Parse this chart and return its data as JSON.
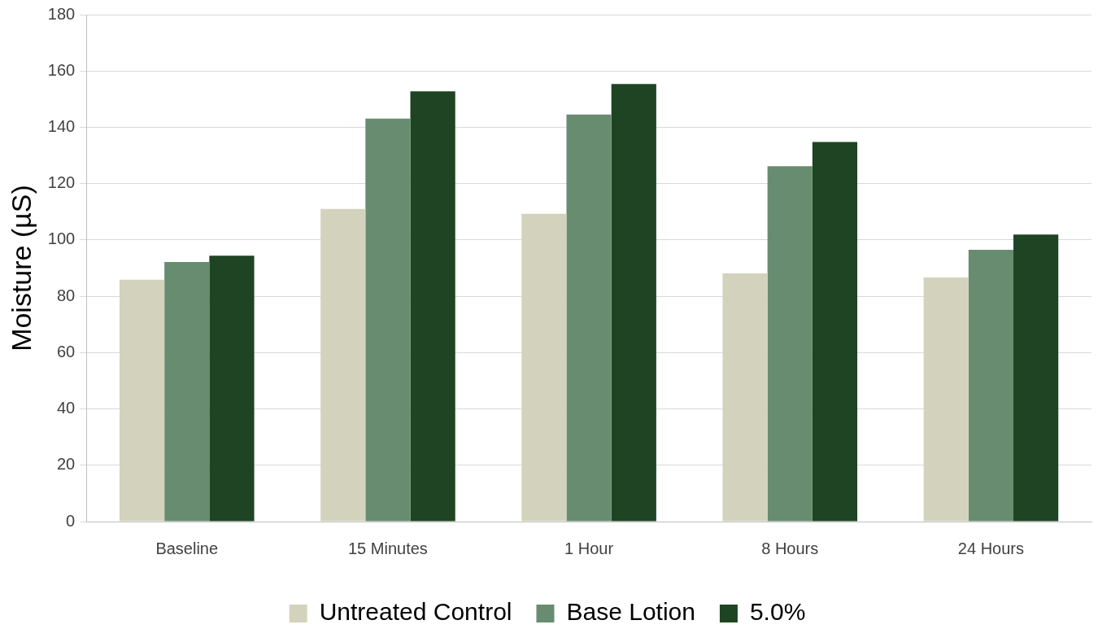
{
  "chart_data": {
    "type": "bar",
    "ylabel": "Moisture (µS)",
    "categories": [
      "Baseline",
      "15 Minutes",
      "1 Hour",
      "8 Hours",
      "24 Hours"
    ],
    "series": [
      {
        "name": "Untreated Control",
        "color": "#d3d3bd",
        "values": [
          85.9,
          111,
          109.3,
          88.1,
          86.7
        ]
      },
      {
        "name": "Base Lotion",
        "color": "#688c70",
        "values": [
          92.2,
          143.1,
          144.5,
          126.2,
          96.5
        ]
      },
      {
        "name": "5.0%",
        "color": "#1e4423",
        "values": [
          94.4,
          152.8,
          155.4,
          134.8,
          101.9
        ]
      }
    ],
    "ylim": [
      0,
      180
    ],
    "yticks": [
      0,
      20,
      40,
      60,
      80,
      100,
      120,
      140,
      160,
      180
    ],
    "grid": "y",
    "legend": "bottom"
  }
}
